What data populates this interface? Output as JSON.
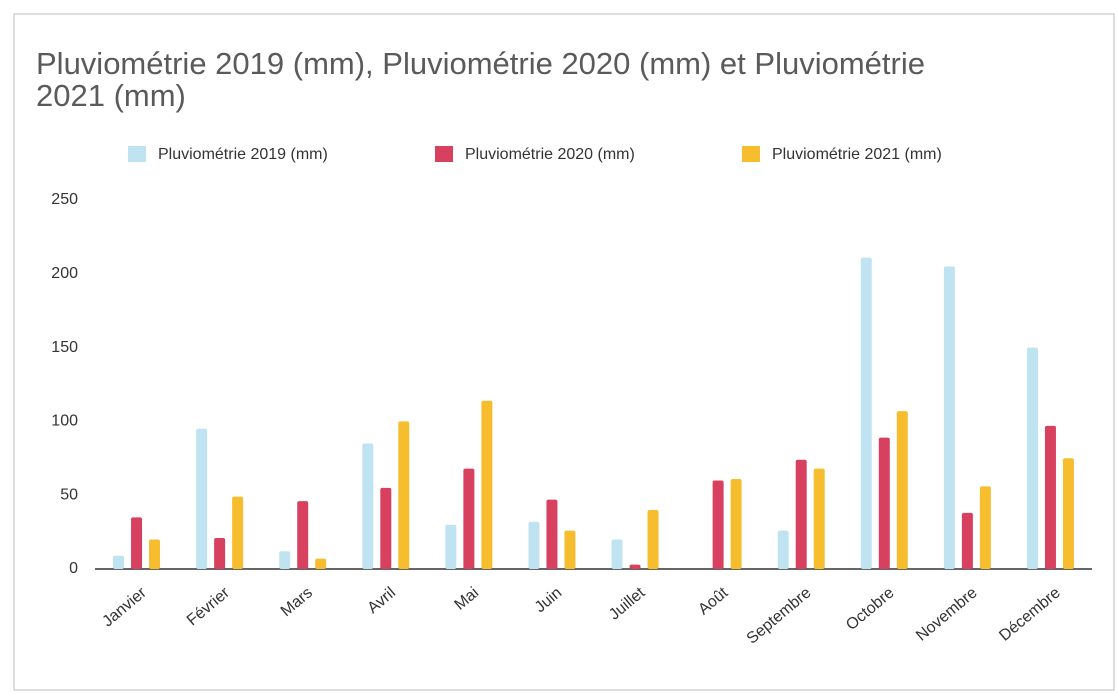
{
  "chart_data": {
    "type": "bar",
    "title": "Pluviométrie 2019 (mm), Pluviométrie 2020 (mm) et Pluviométrie 2021 (mm)",
    "categories": [
      "Janvier",
      "Février",
      "Mars",
      "Avril",
      "Mai",
      "Juin",
      "Juillet",
      "Août",
      "Septembre",
      "Octobre",
      "Novembre",
      "Décembre"
    ],
    "series": [
      {
        "name": "Pluviométrie 2019 (mm)",
        "color": "#bfe3f1",
        "values": [
          9,
          95,
          12,
          85,
          30,
          32,
          20,
          0,
          26,
          211,
          205,
          150
        ]
      },
      {
        "name": "Pluviométrie 2020 (mm)",
        "color": "#d8405f",
        "values": [
          35,
          21,
          46,
          55,
          68,
          47,
          3,
          60,
          74,
          89,
          38,
          97
        ]
      },
      {
        "name": "Pluviométrie 2021 (mm)",
        "color": "#f6bd2f",
        "values": [
          20,
          49,
          7,
          100,
          114,
          26,
          40,
          61,
          68,
          107,
          56,
          75
        ]
      }
    ],
    "ylim": [
      0,
      250
    ],
    "yticks": [
      0,
      50,
      100,
      150,
      200,
      250
    ],
    "grid": false
  }
}
